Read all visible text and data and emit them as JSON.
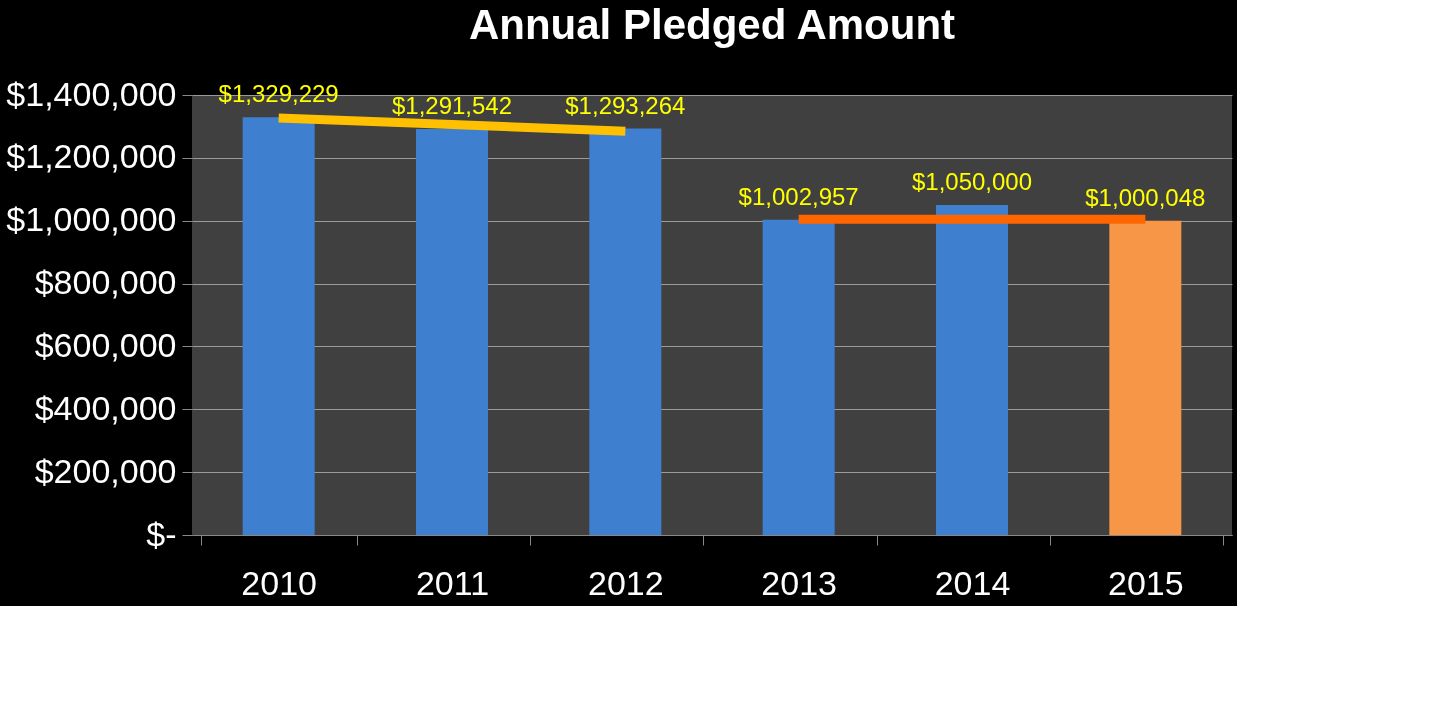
{
  "chart_data": {
    "type": "bar",
    "title": "Annual Pledged Amount",
    "categories": [
      "2010",
      "2011",
      "2012",
      "2013",
      "2014",
      "2015"
    ],
    "series": [
      {
        "colors": [
          "#3f7fd0",
          "#3f7fd0",
          "#3f7fd0",
          "#3f7fd0",
          "#3f7fd0",
          "#f79646"
        ],
        "values": [
          1329229,
          1291542,
          1293264,
          1002957,
          1050000,
          1000048
        ],
        "value_labels": [
          "$1,329,229",
          "$1,291,542",
          "$1,293,264",
          "$1,002,957",
          "$1,050,000",
          "$1,000,048"
        ]
      },
      {
        "type": "line",
        "color": "#ffc000",
        "values": [
          1327000,
          1306000,
          1285000,
          null,
          null,
          null
        ]
      },
      {
        "type": "line",
        "color": "#ff6600",
        "values": [
          null,
          null,
          null,
          1005000,
          1005000,
          1005000
        ]
      }
    ],
    "ylim": [
      0,
      1400000
    ],
    "yticks": [
      {
        "value": 0,
        "label": "$-"
      },
      {
        "value": 200000,
        "label": "$200,000"
      },
      {
        "value": 400000,
        "label": "$400,000"
      },
      {
        "value": 600000,
        "label": "$600,000"
      },
      {
        "value": 800000,
        "label": "$800,000"
      },
      {
        "value": 1000000,
        "label": "$1,000,000"
      },
      {
        "value": 1200000,
        "label": "$1,200,000"
      },
      {
        "value": 1400000,
        "label": "$1,400,000"
      }
    ],
    "grid": "y"
  }
}
